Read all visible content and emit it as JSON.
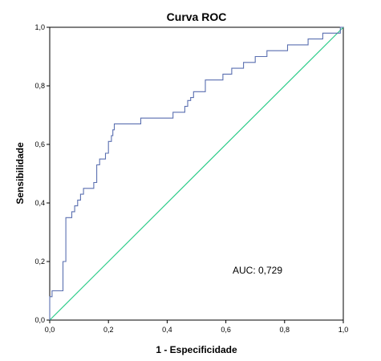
{
  "chart_data": {
    "type": "line",
    "title": "Curva ROC",
    "xlabel": "1 - Especificidade",
    "ylabel": "Sensibilidade",
    "xlim": [
      0,
      1
    ],
    "ylim": [
      0,
      1
    ],
    "x_ticks": [
      "0,0",
      "0,2",
      "0,4",
      "0,6",
      "0,8",
      "1,0"
    ],
    "y_ticks": [
      "0,0",
      "0,2",
      "0,4",
      "0,6",
      "0,8",
      "1,0"
    ],
    "grid": false,
    "annotation": "AUC: 0,729",
    "colors": {
      "roc": "#5a6fb0",
      "reference": "#2ecc8a"
    },
    "series": [
      {
        "values_x": [
          0.0,
          0.0,
          0.008,
          0.008,
          0.045,
          0.045,
          0.055,
          0.055,
          0.075,
          0.075,
          0.085,
          0.085,
          0.095,
          0.095,
          0.105,
          0.105,
          0.115,
          0.115,
          0.15,
          0.15,
          0.16,
          0.16,
          0.17,
          0.17,
          0.19,
          0.19,
          0.2,
          0.2,
          0.21,
          0.21,
          0.215,
          0.215,
          0.22,
          0.22,
          0.23,
          0.23,
          0.31,
          0.31,
          0.42,
          0.42,
          0.46,
          0.46,
          0.47,
          0.47,
          0.48,
          0.48,
          0.49,
          0.49,
          0.53,
          0.53,
          0.59,
          0.59,
          0.62,
          0.62,
          0.66,
          0.66,
          0.7,
          0.7,
          0.74,
          0.74,
          0.81,
          0.81,
          0.88,
          0.88,
          0.93,
          0.93,
          0.99,
          0.99,
          1.0
        ],
        "values_y": [
          0.0,
          0.08,
          0.08,
          0.1,
          0.1,
          0.2,
          0.2,
          0.35,
          0.35,
          0.37,
          0.37,
          0.39,
          0.39,
          0.41,
          0.41,
          0.43,
          0.43,
          0.45,
          0.45,
          0.47,
          0.47,
          0.53,
          0.53,
          0.55,
          0.55,
          0.57,
          0.57,
          0.61,
          0.61,
          0.63,
          0.63,
          0.65,
          0.65,
          0.67,
          0.67,
          0.67,
          0.67,
          0.69,
          0.69,
          0.71,
          0.71,
          0.73,
          0.73,
          0.75,
          0.75,
          0.76,
          0.76,
          0.78,
          0.78,
          0.82,
          0.82,
          0.84,
          0.84,
          0.86,
          0.86,
          0.88,
          0.88,
          0.9,
          0.9,
          0.92,
          0.92,
          0.94,
          0.94,
          0.96,
          0.96,
          0.98,
          0.98,
          1.0,
          1.0
        ]
      },
      {
        "values_x": [
          0,
          1
        ],
        "values_y": [
          0,
          1
        ]
      }
    ]
  }
}
